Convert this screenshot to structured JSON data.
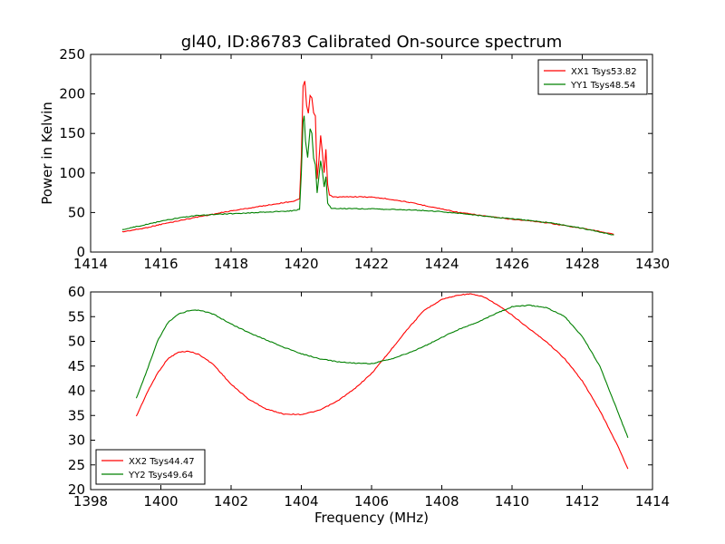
{
  "chart_data": [
    {
      "type": "line",
      "title": "gl40, ID:86783 Calibrated On-source spectrum",
      "xlabel": "",
      "ylabel": "Power in Kelvin",
      "xlim": [
        1414,
        1430
      ],
      "ylim": [
        0,
        250
      ],
      "xticks": [
        1414,
        1416,
        1418,
        1420,
        1422,
        1424,
        1426,
        1428,
        1430
      ],
      "yticks": [
        0,
        50,
        100,
        150,
        200,
        250
      ],
      "legend_position": "top-right",
      "grid": false,
      "series": [
        {
          "name": "XX1 Tsys53.82",
          "color": "#ff0000",
          "points": [
            [
              1414.9,
              25.5
            ],
            [
              1415.5,
              30
            ],
            [
              1416.0,
              35
            ],
            [
              1416.5,
              39.5
            ],
            [
              1417.0,
              44
            ],
            [
              1417.5,
              48
            ],
            [
              1418.0,
              52
            ],
            [
              1418.5,
              55.5
            ],
            [
              1419.0,
              59
            ],
            [
              1419.5,
              62.5
            ],
            [
              1419.8,
              64.5
            ],
            [
              1419.95,
              67
            ],
            [
              1420.0,
              120
            ],
            [
              1420.05,
              210
            ],
            [
              1420.1,
              216
            ],
            [
              1420.15,
              185
            ],
            [
              1420.2,
              175
            ],
            [
              1420.25,
              198
            ],
            [
              1420.3,
              195
            ],
            [
              1420.35,
              176
            ],
            [
              1420.4,
              172
            ],
            [
              1420.45,
              92
            ],
            [
              1420.5,
              115
            ],
            [
              1420.55,
              148
            ],
            [
              1420.6,
              125
            ],
            [
              1420.65,
              100
            ],
            [
              1420.7,
              130
            ],
            [
              1420.75,
              85
            ],
            [
              1420.8,
              72
            ],
            [
              1420.9,
              70
            ],
            [
              1421.0,
              69.5
            ],
            [
              1421.5,
              70
            ],
            [
              1422.0,
              69.5
            ],
            [
              1422.5,
              67
            ],
            [
              1423.0,
              63.5
            ],
            [
              1423.5,
              59
            ],
            [
              1424.0,
              54.5
            ],
            [
              1424.5,
              50
            ],
            [
              1425.0,
              47
            ],
            [
              1425.5,
              44
            ],
            [
              1426.0,
              41.5
            ],
            [
              1426.5,
              39.5
            ],
            [
              1427.0,
              37
            ],
            [
              1427.5,
              33.5
            ],
            [
              1428.0,
              30
            ],
            [
              1428.5,
              26
            ],
            [
              1428.9,
              22.5
            ]
          ]
        },
        {
          "name": "YY1 Tsys48.54",
          "color": "#008000",
          "points": [
            [
              1414.9,
              28.5
            ],
            [
              1415.5,
              34
            ],
            [
              1416.0,
              39
            ],
            [
              1416.5,
              43
            ],
            [
              1417.0,
              46
            ],
            [
              1417.5,
              47.5
            ],
            [
              1418.0,
              48.5
            ],
            [
              1418.5,
              49.5
            ],
            [
              1419.0,
              50.5
            ],
            [
              1419.5,
              51.5
            ],
            [
              1419.8,
              52.5
            ],
            [
              1419.95,
              54
            ],
            [
              1420.0,
              100
            ],
            [
              1420.05,
              165
            ],
            [
              1420.08,
              172
            ],
            [
              1420.12,
              140
            ],
            [
              1420.18,
              120
            ],
            [
              1420.25,
              156
            ],
            [
              1420.3,
              150
            ],
            [
              1420.35,
              118
            ],
            [
              1420.4,
              110
            ],
            [
              1420.45,
              75
            ],
            [
              1420.5,
              95
            ],
            [
              1420.55,
              115
            ],
            [
              1420.6,
              102
            ],
            [
              1420.65,
              82
            ],
            [
              1420.7,
              95
            ],
            [
              1420.75,
              62
            ],
            [
              1420.85,
              55.5
            ],
            [
              1421.0,
              55
            ],
            [
              1421.5,
              55
            ],
            [
              1422.0,
              54.5
            ],
            [
              1422.5,
              54
            ],
            [
              1423.0,
              53.5
            ],
            [
              1423.5,
              52.5
            ],
            [
              1424.0,
              51
            ],
            [
              1424.5,
              49
            ],
            [
              1425.0,
              46.5
            ],
            [
              1425.5,
              44
            ],
            [
              1426.0,
              42
            ],
            [
              1426.5,
              40
            ],
            [
              1427.0,
              37.5
            ],
            [
              1427.5,
              34
            ],
            [
              1428.0,
              30
            ],
            [
              1428.5,
              25.5
            ],
            [
              1428.9,
              21.5
            ]
          ]
        }
      ]
    },
    {
      "type": "line",
      "title": "",
      "xlabel": "Frequency (MHz)",
      "ylabel": "",
      "xlim": [
        1398,
        1414
      ],
      "ylim": [
        20,
        60
      ],
      "xticks": [
        1398,
        1400,
        1402,
        1404,
        1406,
        1408,
        1410,
        1412,
        1414
      ],
      "yticks": [
        20,
        25,
        30,
        35,
        40,
        45,
        50,
        55,
        60
      ],
      "legend_position": "bottom-left",
      "grid": false,
      "series": [
        {
          "name": "XX2 Tsys44.47",
          "color": "#ff0000",
          "points": [
            [
              1399.3,
              34.8
            ],
            [
              1399.6,
              39.5
            ],
            [
              1399.9,
              43.5
            ],
            [
              1400.2,
              46.5
            ],
            [
              1400.5,
              47.8
            ],
            [
              1400.8,
              48
            ],
            [
              1401.1,
              47.3
            ],
            [
              1401.5,
              45.3
            ],
            [
              1402.0,
              41.3
            ],
            [
              1402.5,
              38.3
            ],
            [
              1403.0,
              36.3
            ],
            [
              1403.5,
              35.3
            ],
            [
              1404.0,
              35.2
            ],
            [
              1404.5,
              36
            ],
            [
              1405.0,
              37.8
            ],
            [
              1405.5,
              40.3
            ],
            [
              1406.0,
              43.5
            ],
            [
              1406.5,
              47.8
            ],
            [
              1407.0,
              52.3
            ],
            [
              1407.5,
              56.3
            ],
            [
              1408.0,
              58.5
            ],
            [
              1408.5,
              59.4
            ],
            [
              1408.8,
              59.6
            ],
            [
              1409.2,
              59
            ],
            [
              1409.6,
              57.3
            ],
            [
              1410.0,
              55.3
            ],
            [
              1410.5,
              52.5
            ],
            [
              1411.0,
              49.8
            ],
            [
              1411.5,
              46.5
            ],
            [
              1412.0,
              42
            ],
            [
              1412.5,
              36
            ],
            [
              1413.0,
              29
            ],
            [
              1413.3,
              24.2
            ]
          ]
        },
        {
          "name": "YY2 Tsys49.64",
          "color": "#008000",
          "points": [
            [
              1399.3,
              38.5
            ],
            [
              1399.6,
              44
            ],
            [
              1399.9,
              50
            ],
            [
              1400.2,
              53.8
            ],
            [
              1400.5,
              55.5
            ],
            [
              1400.8,
              56.2
            ],
            [
              1401.1,
              56.3
            ],
            [
              1401.5,
              55.5
            ],
            [
              1402.0,
              53.5
            ],
            [
              1402.5,
              51.8
            ],
            [
              1403.0,
              50.3
            ],
            [
              1403.5,
              48.8
            ],
            [
              1404.0,
              47.5
            ],
            [
              1404.5,
              46.5
            ],
            [
              1405.0,
              45.9
            ],
            [
              1405.5,
              45.6
            ],
            [
              1406.0,
              45.5
            ],
            [
              1406.5,
              46.3
            ],
            [
              1407.0,
              47.5
            ],
            [
              1407.5,
              49
            ],
            [
              1408.0,
              50.8
            ],
            [
              1408.5,
              52.5
            ],
            [
              1409.0,
              53.8
            ],
            [
              1409.5,
              55.5
            ],
            [
              1410.0,
              57
            ],
            [
              1410.5,
              57.3
            ],
            [
              1411.0,
              56.8
            ],
            [
              1411.5,
              55
            ],
            [
              1412.0,
              51
            ],
            [
              1412.5,
              45
            ],
            [
              1413.0,
              36
            ],
            [
              1413.3,
              30.5
            ]
          ]
        }
      ]
    }
  ]
}
